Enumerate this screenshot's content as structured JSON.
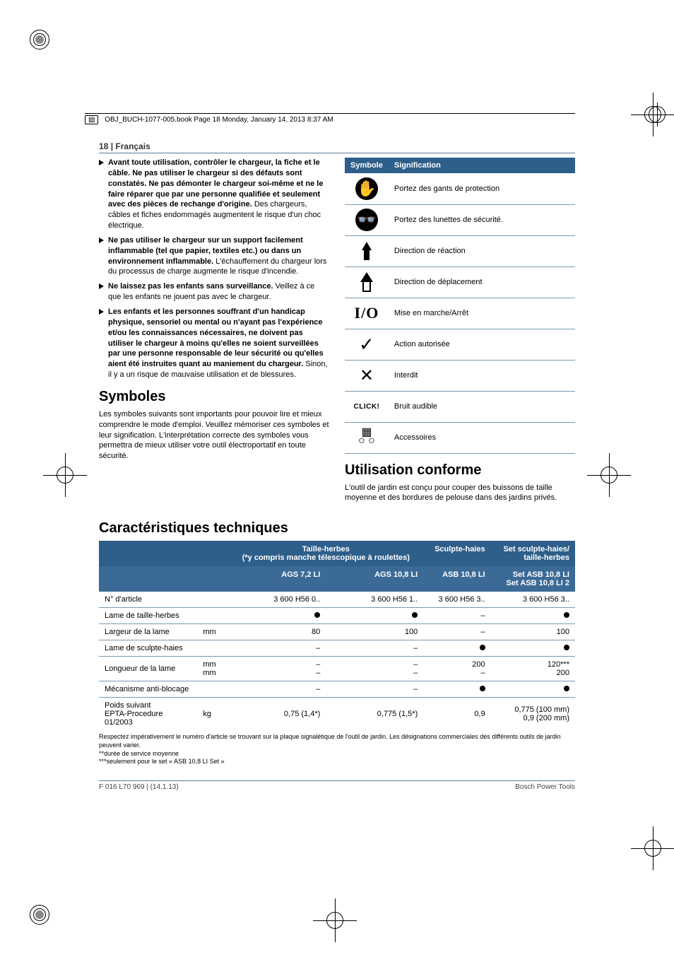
{
  "file_header": "OBJ_BUCH-1077-005.book  Page 18  Monday, January 14, 2013  8:37 AM",
  "page_header": {
    "num": "18",
    "sep": " | ",
    "lang": "Français"
  },
  "left": {
    "bullets": [
      {
        "bold": "Avant toute utilisation, contrôler le chargeur, la fiche et le câble. Ne pas utiliser le chargeur si des défauts sont constatés. Ne pas démonter le chargeur soi-même et ne le faire réparer que par une personne qualifiée et seulement avec des pièces de rechange d'origine.",
        "rest": " Des chargeurs, câbles et fiches endommagés augmentent le risque d'un choc électrique."
      },
      {
        "bold": "Ne pas utiliser le chargeur sur un support facilement inflammable (tel que papier, textiles etc.) ou dans un environnement inflammable.",
        "rest": " L'échauffement du chargeur lors du processus de charge augmente le risque d'incendie."
      },
      {
        "bold": "Ne laissez pas les enfants sans surveillance.",
        "rest": " Veillez à ce que les enfants ne jouent pas avec le chargeur."
      },
      {
        "bold": "Les enfants et les personnes souffrant d'un handicap physique, sensoriel ou mental ou n'ayant pas l'expérience et/ou les connaissances nécessaires, ne doivent pas utiliser le chargeur à moins qu'elles ne soient surveillées par une personne responsable de leur sécurité ou qu'elles aient été instruites quant au maniement du chargeur.",
        "rest": " Sinon, il y a un risque de mauvaise utilisation et de blessures."
      }
    ],
    "symboles_title": "Symboles",
    "symboles_intro": "Les symboles suivants sont importants pour pouvoir lire et mieux comprendre le mode d'emploi. Veuillez mémoriser ces symboles et leur signification. L'interprétation correcte des symboles vous permettra de mieux utiliser votre outil électroportatif en toute sécurité."
  },
  "symtable": {
    "headers": {
      "symbole": "Symbole",
      "signification": "Signification"
    },
    "rows": [
      {
        "icon": "gloves",
        "text": "Portez des gants de protection"
      },
      {
        "icon": "goggles",
        "text": "Portez des lunettes de sécurité."
      },
      {
        "icon": "arrow-solid",
        "text": "Direction de réaction"
      },
      {
        "icon": "arrow-hollow",
        "text": "Direction de déplacement"
      },
      {
        "icon": "io",
        "text": "Mise en marche/Arrêt"
      },
      {
        "icon": "check",
        "text": "Action autorisée"
      },
      {
        "icon": "cross",
        "text": "Interdit"
      },
      {
        "icon": "click",
        "text": "Bruit audible"
      },
      {
        "icon": "accessory",
        "text": "Accessoires"
      }
    ]
  },
  "right": {
    "conforme_title": "Utilisation conforme",
    "conforme_text": "L'outil de jardin est conçu pour couper des buissons de taille moyenne et des bordures de pelouse dans des jardins privés."
  },
  "spec": {
    "title": "Caractéristiques techniques",
    "group_headers": [
      "",
      "Taille-herbes\n(*y compris manche télescopique à roulettes)",
      "Sculpte-haies",
      "Set sculpte-haies/\ntaille-herbes"
    ],
    "model_headers": [
      "",
      "AGS 7,2 LI",
      "AGS 10,8 LI",
      "ASB 10,8 LI",
      "Set ASB 10,8 LI\nSet ASB 10,8 LI 2"
    ],
    "rows": [
      {
        "label": "N° d'article",
        "unit": "",
        "c": [
          "3 600 H56 0..",
          "3 600 H56 1..",
          "3 600 H56 3..",
          "3 600 H56 3.."
        ]
      },
      {
        "label": "Lame de taille-herbes",
        "unit": "",
        "c": [
          "●",
          "●",
          "–",
          "●"
        ]
      },
      {
        "label": "Largeur de la lame",
        "unit": "mm",
        "c": [
          "80",
          "100",
          "–",
          "100"
        ]
      },
      {
        "label": "Lame de sculpte-haies",
        "unit": "",
        "c": [
          "–",
          "–",
          "●",
          "●"
        ]
      },
      {
        "label": "Longueur de la lame",
        "unit": "mm\nmm",
        "c": [
          "–\n–",
          "–\n–",
          "200\n–",
          "120***\n200"
        ]
      },
      {
        "label": "Mécanisme anti-blocage",
        "unit": "",
        "c": [
          "–",
          "–",
          "●",
          "●"
        ]
      },
      {
        "label": "Poids suivant\nEPTA-Procedure\n01/2003",
        "unit": "kg",
        "c": [
          "0,75 (1,4*)",
          "0,775 (1,5*)",
          "0,9",
          "0,775 (100 mm)\n0,9 (200 mm)"
        ],
        "noborder": true
      }
    ],
    "footnotes": [
      "Respectez impérativement le numéro d'article se trouvant sur la plaque signalétique de l'outil de jardin. Les désignations commerciales des différents outils de jardin peuvent varier.",
      "**durée de service moyenne",
      "***seulement pour le set « ASB 10,8 LI Set »"
    ]
  },
  "footer": {
    "left": "F 016 L70 969 | (14.1.13)",
    "right": "Bosch Power Tools"
  },
  "colors": {
    "accent": "#2e5e8a",
    "accent2": "#3c6a96",
    "rule": "#7a98b0",
    "text": "#000000",
    "white": "#ffffff"
  }
}
